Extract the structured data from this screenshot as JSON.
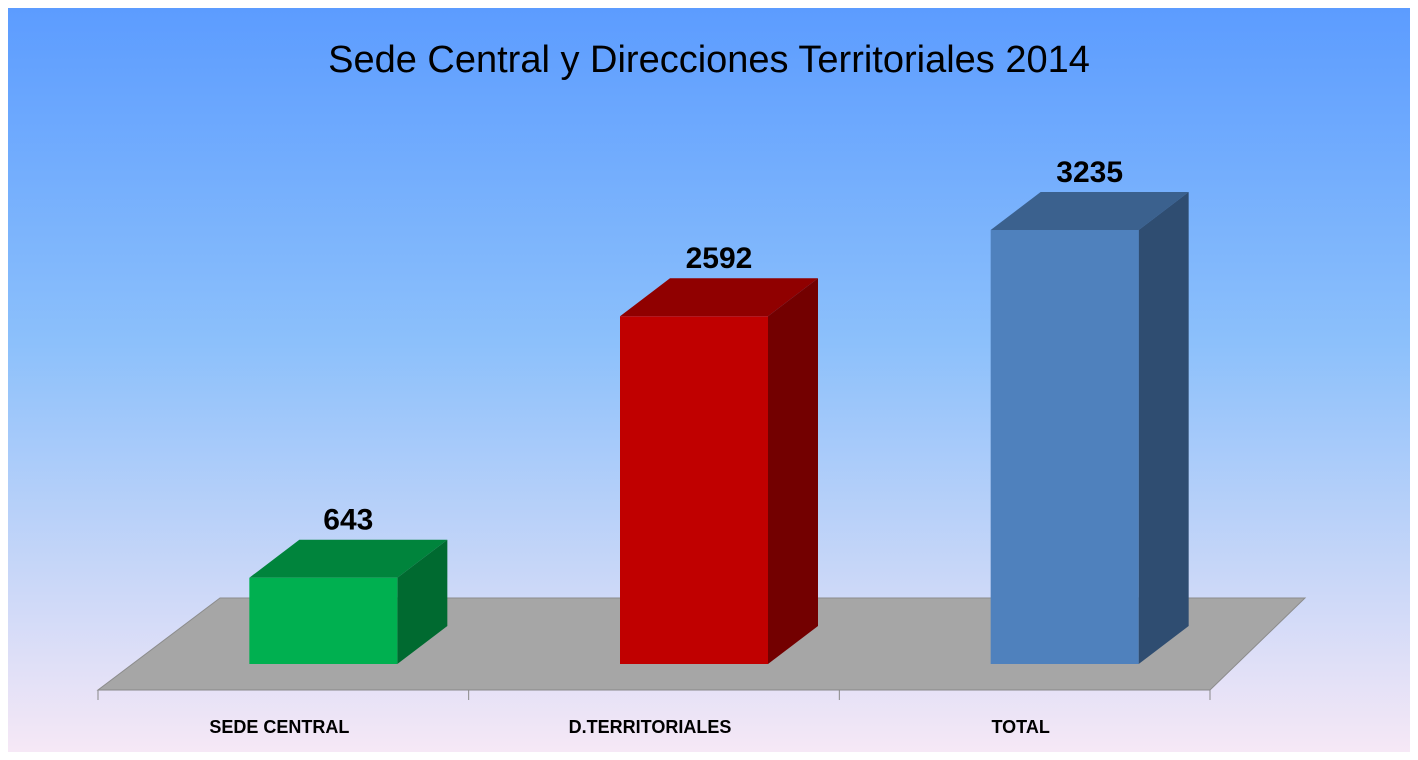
{
  "chart_data": {
    "type": "bar",
    "title": "Sede Central y Direcciones Territoriales 2014",
    "categories": [
      "SEDE CENTRAL",
      "D.TERRITORIALES",
      "TOTAL"
    ],
    "values": [
      643,
      2592,
      3235
    ],
    "colors": [
      "#00b050",
      "#c00000",
      "#4f81bd"
    ]
  }
}
